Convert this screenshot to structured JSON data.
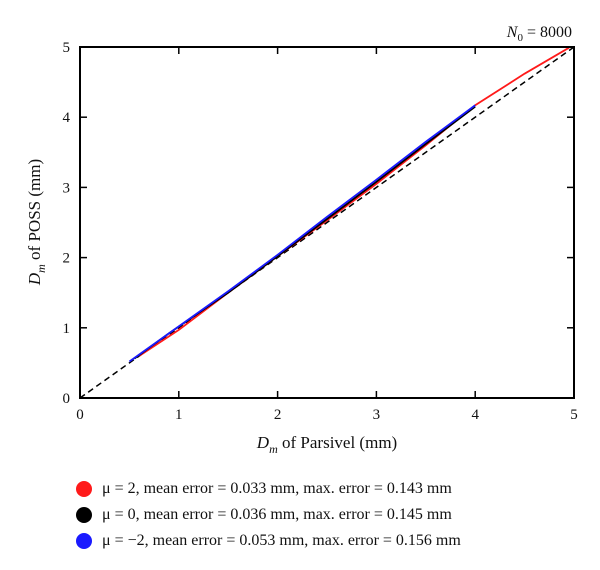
{
  "chart_data": {
    "type": "line",
    "corner_label": {
      "symbol": "N",
      "subscript": "0",
      "rest": " = 8000"
    },
    "xlabel": {
      "symbol": "D",
      "subscript": "m",
      "rest": " of Parsivel (mm)"
    },
    "ylabel": {
      "symbol": "D",
      "subscript": "m",
      "rest": " of POSS (mm)"
    },
    "xlim": [
      0,
      5
    ],
    "ylim": [
      0,
      5
    ],
    "xticks": [
      "0",
      "1",
      "2",
      "3",
      "4",
      "5"
    ],
    "yticks": [
      "0",
      "1",
      "2",
      "3",
      "4",
      "5"
    ],
    "grid": false,
    "legend_position": "below",
    "series": [
      {
        "color": "#ff1a1a",
        "label": "μ = 2, mean error = 0.033 mm, max. error = 0.143 mm",
        "x": [
          0.6,
          1.0,
          1.5,
          2.0,
          2.5,
          3.0,
          3.5,
          4.0,
          4.5,
          4.95
        ],
        "y": [
          0.6,
          0.97,
          1.5,
          2.02,
          2.53,
          3.05,
          3.6,
          4.17,
          4.62,
          4.99
        ]
      },
      {
        "color": "#000000",
        "label": "μ = 0, mean error = 0.036 mm, max. error = 0.145 mm",
        "x": [
          0.55,
          0.9,
          1.5,
          2.0,
          2.5,
          3.0,
          3.5,
          4.0
        ],
        "y": [
          0.56,
          0.92,
          1.5,
          2.02,
          2.55,
          3.08,
          3.62,
          4.15
        ]
      },
      {
        "color": "#1a1aff",
        "label": "μ = −2, mean error = 0.053 mm, max. error = 0.156 mm",
        "x": [
          0.5,
          0.9,
          1.5,
          2.0,
          2.5,
          3.0,
          3.5,
          4.0
        ],
        "y": [
          0.52,
          0.92,
          1.52,
          2.04,
          2.58,
          3.11,
          3.65,
          4.17
        ]
      },
      {
        "color": "#000000",
        "dashed": true,
        "x": [
          0,
          5
        ],
        "y": [
          0,
          5
        ]
      }
    ]
  }
}
